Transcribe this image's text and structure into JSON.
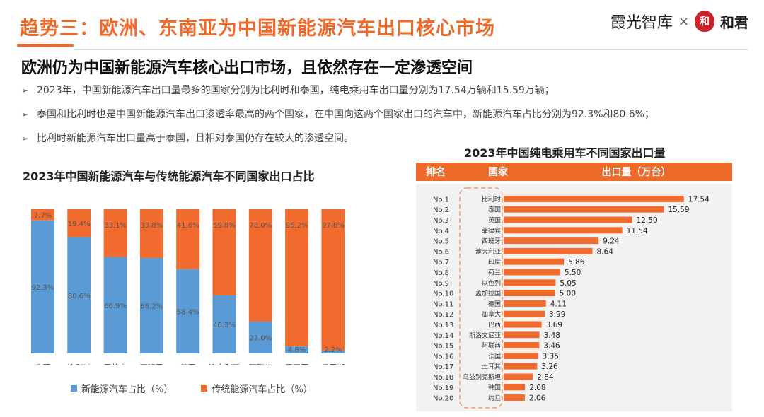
{
  "header": {
    "title": "趋势三：欧洲、东南亚为中国新能源汽车出口核心市场",
    "logo_left": "霞光智库",
    "logo_sep": "×",
    "logo_seal": "和",
    "logo_right": "和君"
  },
  "subtitle": "欧洲仍为中国新能源汽车核心出口市场，且依然存在一定渗透空间",
  "bullets": [
    "2023年，中国新能源汽车出口量最多的国家分别为比利时和泰国，纯电乘用车出口量分别为17.54万辆和15.59万辆；",
    "泰国和比利时也是中国新能源汽车出口渗透率最高的两个国家，在中国向这两个国家出口的汽车中，新能源汽车占比分别为92.3%和80.6%；",
    "比利时新能源汽车出口量高于泰国，且相对泰国仍存在较大的渗透空间。"
  ],
  "bullet_marker": "➢",
  "colors": {
    "blue": "#5b9bd5",
    "orange": "#f26b2e",
    "accent": "#ee6a2a",
    "panel": "#f2f2f2"
  },
  "chart_data": [
    {
      "type": "bar",
      "stacked": true,
      "title": "2023年中国新能源汽车与传统能源汽车不同国家出口占比",
      "categories": [
        "泰国",
        "比利时",
        "菲律宾",
        "西班牙",
        "英国",
        "澳大利亚",
        "阿联酋",
        "墨西哥",
        "俄罗斯"
      ],
      "series": [
        {
          "name": "新能源汽车占比（%）",
          "values": [
            92.3,
            80.6,
            66.9,
            66.2,
            58.4,
            40.2,
            22.0,
            4.8,
            2.2
          ],
          "labels": [
            "92.3%",
            "80.6%",
            "66.9%",
            "66.2%",
            "58.4%",
            "40.2%",
            "22.0%",
            "4.8%",
            "2.2%"
          ]
        },
        {
          "name": "传统能源汽车占比（%）",
          "values": [
            7.7,
            19.4,
            33.1,
            33.8,
            41.6,
            59.8,
            78.0,
            95.2,
            97.8
          ],
          "labels": [
            "7.7%",
            "19.4%",
            "33.1%",
            "33.8%",
            "41.6%",
            "59.8%",
            "78.0%",
            "95.2%",
            "97.8%"
          ]
        }
      ],
      "ylim": [
        0,
        100
      ],
      "legend": "bottom"
    },
    {
      "type": "bar",
      "orientation": "horizontal",
      "title": "2023年中国纯电乘用车不同国家出口量",
      "columns": [
        "排名",
        "国家",
        "出口量（万台）"
      ],
      "ranks": [
        "No.1",
        "No.2",
        "No.3",
        "No.4",
        "No.5",
        "No.6",
        "No.7",
        "No.8",
        "No.9",
        "No.10",
        "No.11",
        "No.12",
        "No.13",
        "No.14",
        "No.15",
        "No.16",
        "No.17",
        "No.18",
        "No.19",
        "No.20"
      ],
      "categories": [
        "比利时",
        "泰国",
        "英国",
        "菲律宾",
        "西班牙",
        "澳大利亚",
        "印度",
        "荷兰",
        "以色列",
        "孟加拉国",
        "德国",
        "加拿大",
        "巴西",
        "斯洛文尼亚",
        "阿联酋",
        "法国",
        "土耳其",
        "乌兹别克斯坦",
        "韩国",
        "约旦"
      ],
      "values": [
        17.54,
        15.59,
        12.5,
        11.54,
        9.24,
        8.64,
        5.86,
        5.5,
        5.05,
        5.0,
        4.11,
        3.99,
        3.69,
        3.48,
        3.46,
        3.35,
        3.26,
        2.84,
        2.08,
        2.06
      ],
      "value_labels": [
        "17.54",
        "15.59",
        "12.50",
        "11.54",
        "9.24",
        "8.64",
        "5.86",
        "5.50",
        "5.05",
        "5.00",
        "4.11",
        "3.99",
        "3.69",
        "3.48",
        "3.46",
        "3.35",
        "3.26",
        "2.84",
        "2.08",
        "2.06"
      ],
      "xlim": [
        0,
        19
      ]
    }
  ]
}
